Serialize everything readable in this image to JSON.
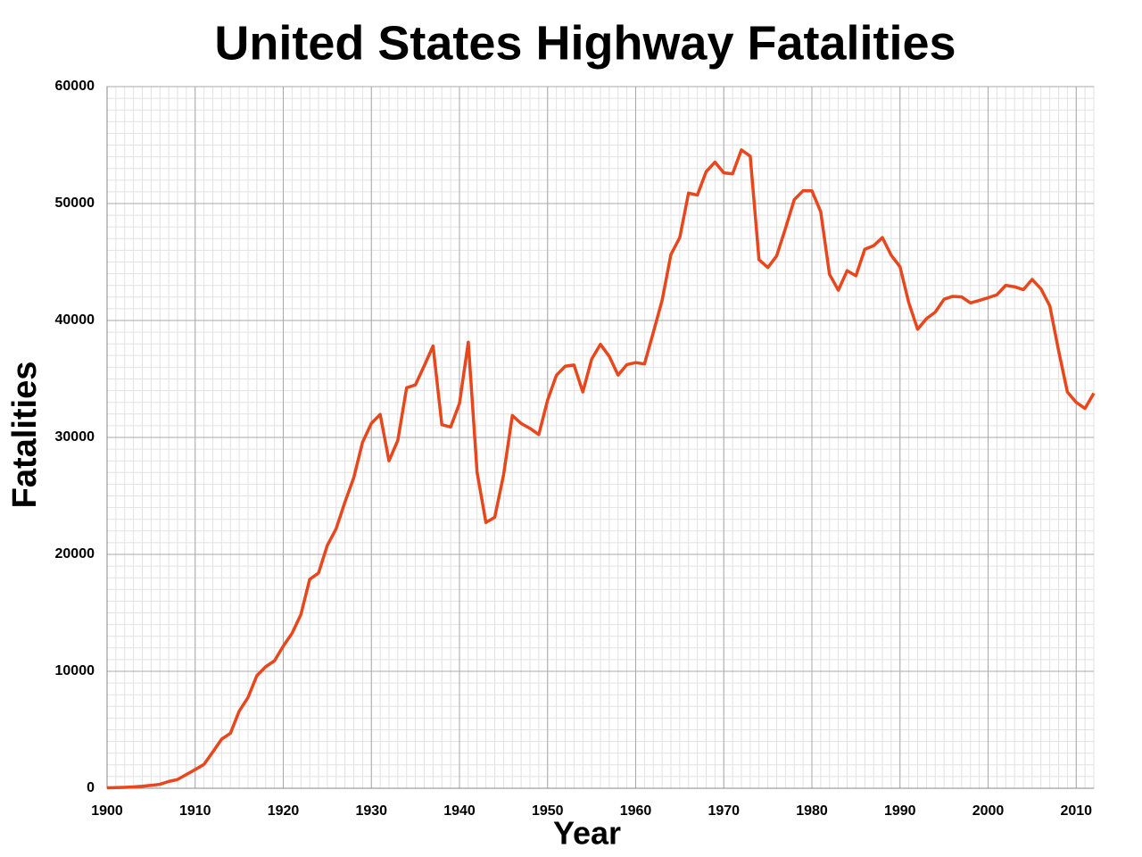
{
  "chart_data": {
    "type": "line",
    "title": "United States Highway Fatalities",
    "x_label": "Year",
    "y_label": "Fatalities",
    "x": [
      1900,
      1901,
      1902,
      1903,
      1904,
      1905,
      1906,
      1907,
      1908,
      1909,
      1910,
      1911,
      1912,
      1913,
      1914,
      1915,
      1916,
      1917,
      1918,
      1919,
      1920,
      1921,
      1922,
      1923,
      1924,
      1925,
      1926,
      1927,
      1928,
      1929,
      1930,
      1931,
      1932,
      1933,
      1934,
      1935,
      1936,
      1937,
      1938,
      1939,
      1940,
      1941,
      1942,
      1943,
      1944,
      1945,
      1946,
      1947,
      1948,
      1949,
      1950,
      1951,
      1952,
      1953,
      1954,
      1955,
      1956,
      1957,
      1958,
      1959,
      1960,
      1961,
      1962,
      1963,
      1964,
      1965,
      1966,
      1967,
      1968,
      1969,
      1970,
      1971,
      1972,
      1973,
      1974,
      1975,
      1976,
      1977,
      1978,
      1979,
      1980,
      1981,
      1982,
      1983,
      1984,
      1985,
      1986,
      1987,
      1988,
      1989,
      1990,
      1991,
      1992,
      1993,
      1994,
      1995,
      1996,
      1997,
      1998,
      1999,
      2000,
      2001,
      2002,
      2003,
      2004,
      2005,
      2006,
      2007,
      2008,
      2009,
      2010,
      2011,
      2012
    ],
    "values": [
      36,
      54,
      79,
      117,
      172,
      252,
      338,
      581,
      751,
      1174,
      1599,
      2043,
      3100,
      4200,
      4700,
      6600,
      7766,
      9630,
      10390,
      10896,
      12155,
      13253,
      14859,
      17870,
      18400,
      20771,
      22194,
      24470,
      26557,
      29592,
      31204,
      31963,
      28000,
      29746,
      34240,
      34494,
      36126,
      37819,
      31083,
      30895,
      32914,
      38142,
      27007,
      22727,
      23165,
      26785,
      31874,
      31193,
      30775,
      30246,
      33186,
      35309,
      36088,
      36190,
      33890,
      36688,
      37965,
      36932,
      35331,
      36223,
      36399,
      36285,
      38980,
      41723,
      45645,
      47089,
      50894,
      50724,
      52725,
      53543,
      52627,
      52542,
      54589,
      54052,
      45196,
      44525,
      45523,
      47878,
      50331,
      51093,
      51091,
      49301,
      43945,
      42589,
      44257,
      43825,
      46087,
      46390,
      47087,
      45582,
      44599,
      41508,
      39250,
      40150,
      40716,
      41817,
      42065,
      42013,
      41501,
      41717,
      41945,
      42196,
      43005,
      42884,
      42636,
      43510,
      42708,
      41259,
      37423,
      33883,
      32999,
      32479,
      33782
    ],
    "color": "#e8461c",
    "xlim": [
      1900,
      2012
    ],
    "ylim": [
      0,
      60000
    ],
    "xticks": [
      1900,
      1910,
      1920,
      1930,
      1940,
      1950,
      1960,
      1970,
      1980,
      1990,
      2000,
      2010
    ],
    "yticks": [
      0,
      10000,
      20000,
      30000,
      40000,
      50000,
      60000
    ],
    "grid": true,
    "minor_grid": {
      "x": 1,
      "y": 1000
    }
  }
}
